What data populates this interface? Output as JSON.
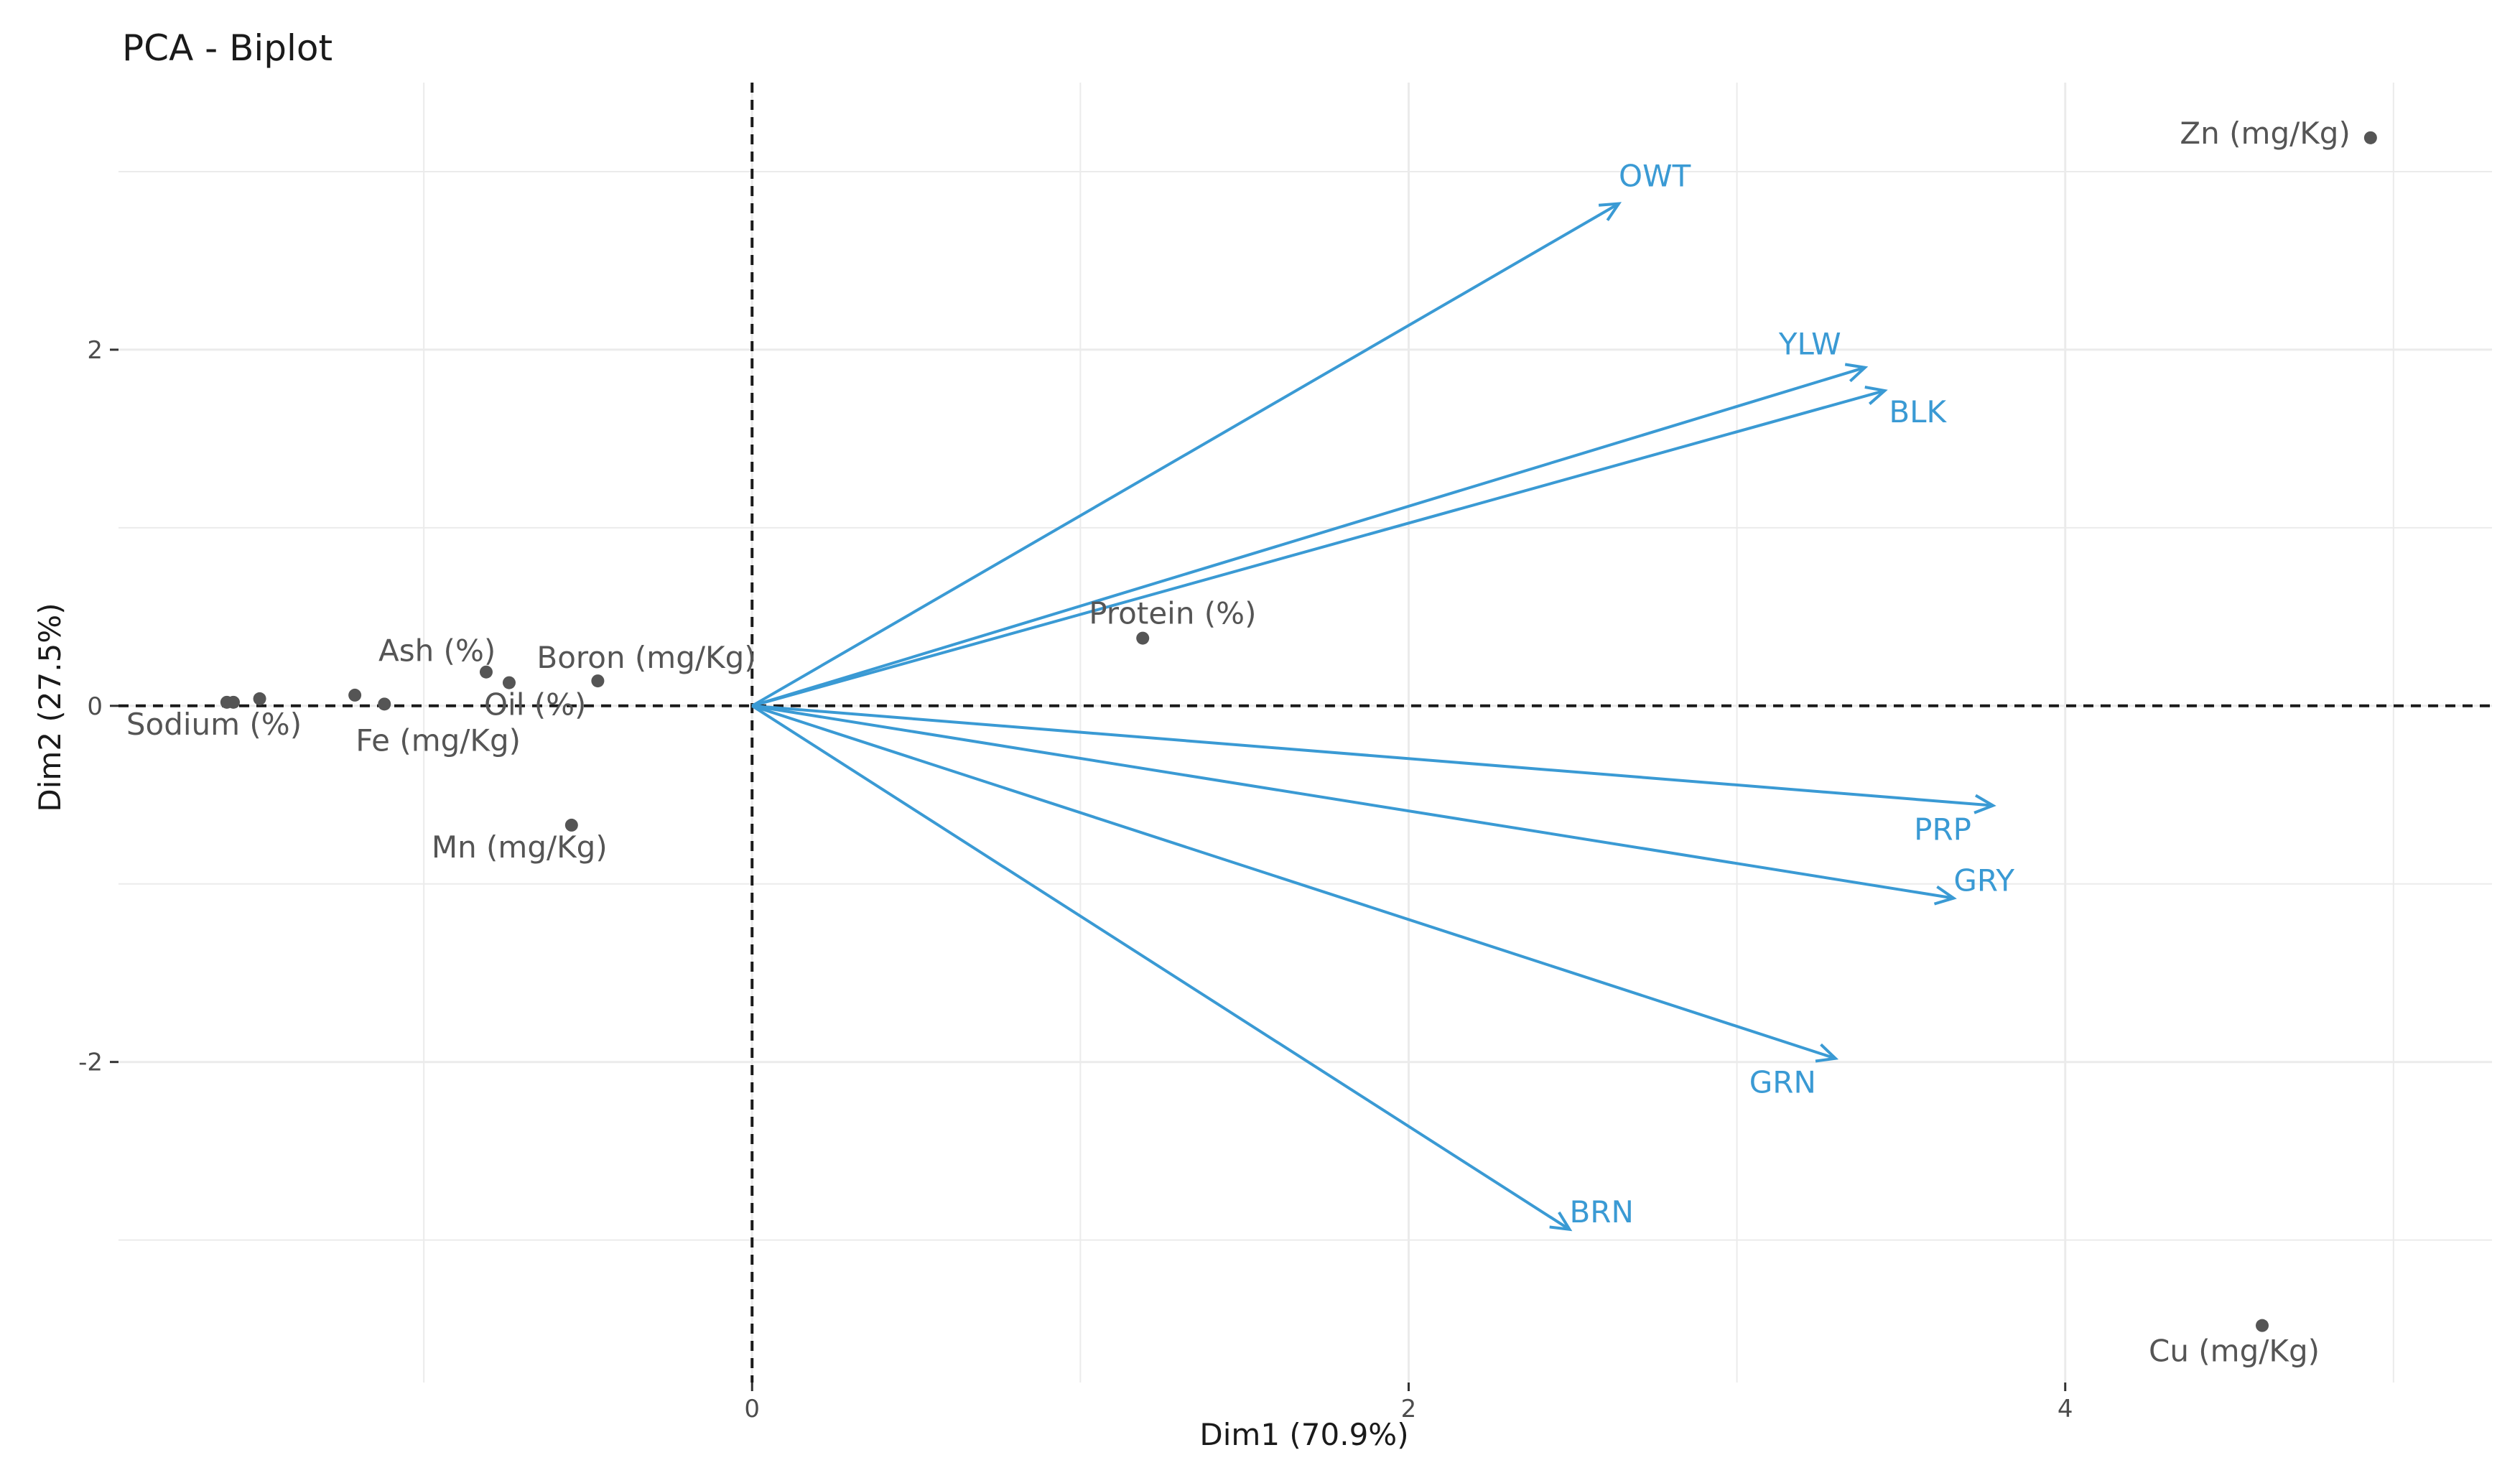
{
  "chart_data": {
    "type": "scatter",
    "subtype": "pca-biplot",
    "title": "PCA - Biplot",
    "xlabel": "Dim1 (70.9%)",
    "ylabel": "Dim2 (27.5%)",
    "xlim": [
      -1.93,
      5.3
    ],
    "ylim": [
      -3.8,
      3.5
    ],
    "x_ticks": [
      0,
      2,
      4
    ],
    "y_ticks": [
      -2,
      0,
      2
    ],
    "grid": true,
    "reference_lines": {
      "x": 0,
      "y": 0,
      "style": "dashed"
    },
    "points": [
      {
        "label": "Zn (mg/Kg)",
        "x": 4.93,
        "y": 3.19
      },
      {
        "label": "Cu (mg/Kg)",
        "x": 4.6,
        "y": -3.48
      },
      {
        "label": "Protein (%)",
        "x": 1.19,
        "y": 0.38
      },
      {
        "label": "Boron (mg/Kg)",
        "x": -0.47,
        "y": 0.14
      },
      {
        "label": "Ash (%)",
        "x": -0.81,
        "y": 0.19
      },
      {
        "label": "Oil (%)",
        "x": -0.74,
        "y": 0.13
      },
      {
        "label": "Mn (mg/Kg)",
        "x": -0.55,
        "y": -0.67
      },
      {
        "label": "Fe (mg/Kg)",
        "x": -1.12,
        "y": 0.01
      },
      {
        "label": "",
        "x": -1.21,
        "y": 0.06
      },
      {
        "label": "Sodium (%)",
        "x": -1.6,
        "y": 0.02
      },
      {
        "label": "",
        "x": -1.5,
        "y": 0.04
      },
      {
        "label": "",
        "x": -1.58,
        "y": 0.02
      }
    ],
    "vectors": [
      {
        "label": "OWT",
        "x": 2.64,
        "y": 2.82
      },
      {
        "label": "YLW",
        "x": 3.39,
        "y": 1.9
      },
      {
        "label": "BLK",
        "x": 3.45,
        "y": 1.77
      },
      {
        "label": "PRP",
        "x": 3.78,
        "y": -0.56
      },
      {
        "label": "GRY",
        "x": 3.66,
        "y": -1.08
      },
      {
        "label": "GRN",
        "x": 3.3,
        "y": -1.98
      },
      {
        "label": "BRN",
        "x": 2.49,
        "y": -2.94
      }
    ],
    "colors": {
      "points": "#555555",
      "vectors": "#3a9ad4",
      "grid": "#ebebeb",
      "reference": "#1a1a1a"
    }
  }
}
